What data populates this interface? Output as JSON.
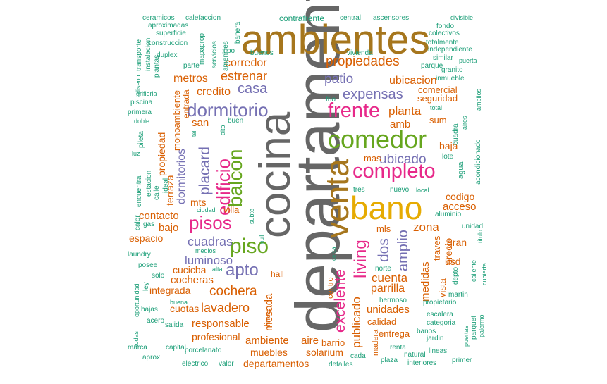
{
  "colors": {
    "t": "#1b9e77",
    "o": "#d95f02",
    "p": "#7570b3",
    "m": "#e7298a",
    "g": "#66a61e",
    "y": "#e6ab02",
    "b": "#a6761d",
    "k": "#666666"
  },
  "words": [
    {
      "text": "departamento",
      "color": "k"
    },
    {
      "text": "ambientes",
      "color": "b"
    },
    {
      "text": "cocina",
      "color": "k"
    },
    {
      "text": "venta",
      "color": "b"
    },
    {
      "text": "bano",
      "color": "y"
    },
    {
      "text": "comedor",
      "color": "g"
    },
    {
      "text": "completo",
      "color": "m"
    },
    {
      "text": "frente",
      "color": "m"
    },
    {
      "text": "piso",
      "color": "g"
    },
    {
      "text": "balcon",
      "color": "g"
    },
    {
      "text": "pisos",
      "color": "m"
    },
    {
      "text": "edificio",
      "color": "m"
    },
    {
      "text": "dormitorio",
      "color": "p"
    },
    {
      "text": "living",
      "color": "m"
    },
    {
      "text": "apto",
      "color": "p"
    },
    {
      "text": "excelente",
      "color": "m"
    },
    {
      "text": "placard",
      "color": "p"
    },
    {
      "text": "propiedades",
      "color": "o"
    },
    {
      "text": "expensas",
      "color": "p"
    },
    {
      "text": "patio",
      "color": "p"
    },
    {
      "text": "casa",
      "color": "p"
    },
    {
      "text": "estrenar",
      "color": "o"
    },
    {
      "text": "ubicado",
      "color": "p"
    },
    {
      "text": "dos",
      "color": "p"
    },
    {
      "text": "amplio",
      "color": "p"
    },
    {
      "text": "cochera",
      "color": "o"
    },
    {
      "text": "lavadero",
      "color": "o"
    },
    {
      "text": "cuadras",
      "color": "p"
    },
    {
      "text": "luminoso",
      "color": "p"
    },
    {
      "text": "dormitorios",
      "color": "p"
    },
    {
      "text": "publicado",
      "color": "o"
    },
    {
      "text": "cuenta",
      "color": "o"
    },
    {
      "text": "parrilla",
      "color": "o"
    },
    {
      "text": "zona",
      "color": "o"
    },
    {
      "text": "planta",
      "color": "o"
    },
    {
      "text": "ubicacion",
      "color": "o"
    },
    {
      "text": "corredor",
      "color": "o"
    },
    {
      "text": "credito",
      "color": "o"
    },
    {
      "text": "metros",
      "color": "o"
    },
    {
      "text": "terraza",
      "color": "o"
    },
    {
      "text": "responsable",
      "color": "o"
    },
    {
      "text": "unidades",
      "color": "o"
    },
    {
      "text": "mesada",
      "color": "o"
    },
    {
      "text": "medidas",
      "color": "o"
    },
    {
      "text": "cocheras",
      "color": "o"
    },
    {
      "text": "ambiente",
      "color": "o"
    },
    {
      "text": "aire",
      "color": "o"
    },
    {
      "text": "muebles",
      "color": "o"
    },
    {
      "text": "solarium",
      "color": "o"
    },
    {
      "text": "departamentos",
      "color": "o"
    },
    {
      "text": "profesional",
      "color": "o"
    },
    {
      "text": "integrada",
      "color": "o"
    },
    {
      "text": "cuotas",
      "color": "o"
    },
    {
      "text": "cucicba",
      "color": "o"
    },
    {
      "text": "contacto",
      "color": "o"
    },
    {
      "text": "bajo",
      "color": "o"
    },
    {
      "text": "espacio",
      "color": "o"
    },
    {
      "text": "propiedad",
      "color": "o"
    },
    {
      "text": "monoambiente",
      "color": "o"
    },
    {
      "text": "entrada",
      "color": "o"
    },
    {
      "text": "san",
      "color": "o"
    },
    {
      "text": "mts",
      "color": "o"
    },
    {
      "text": "villa",
      "color": "o"
    },
    {
      "text": "amb",
      "color": "o"
    },
    {
      "text": "mas",
      "color": "o"
    },
    {
      "text": "mls",
      "color": "o"
    },
    {
      "text": "traves",
      "color": "o"
    },
    {
      "text": "precio",
      "color": "o"
    },
    {
      "text": "vista",
      "color": "o"
    },
    {
      "text": "usd",
      "color": "o"
    },
    {
      "text": "gran",
      "color": "o"
    },
    {
      "text": "acceso",
      "color": "o"
    },
    {
      "text": "codigo",
      "color": "o"
    },
    {
      "text": "baja",
      "color": "o"
    },
    {
      "text": "sum",
      "color": "o"
    },
    {
      "text": "comercial",
      "color": "o"
    },
    {
      "text": "seguridad",
      "color": "o"
    },
    {
      "text": "calidad",
      "color": "o"
    },
    {
      "text": "entrega",
      "color": "o"
    },
    {
      "text": "barrio",
      "color": "o"
    },
    {
      "text": "hall",
      "color": "o"
    },
    {
      "text": "linea",
      "color": "o"
    },
    {
      "text": "centro",
      "color": "o"
    },
    {
      "text": "madera",
      "color": "o"
    },
    {
      "text": "contrafrente",
      "color": "t"
    },
    {
      "text": "ceramicos",
      "color": "t"
    },
    {
      "text": "calefaccion",
      "color": "t"
    },
    {
      "text": "aproximadas",
      "color": "t"
    },
    {
      "text": "superficie",
      "color": "t"
    },
    {
      "text": "construccion",
      "color": "t"
    },
    {
      "text": "duplex",
      "color": "t"
    },
    {
      "text": "parte",
      "color": "t"
    },
    {
      "text": "banera",
      "color": "t"
    },
    {
      "text": "tipo",
      "color": "t"
    },
    {
      "text": "servicios",
      "color": "t"
    },
    {
      "text": "mapaprop",
      "color": "t"
    },
    {
      "text": "amenities",
      "color": "t"
    },
    {
      "text": "transporte",
      "color": "t"
    },
    {
      "text": "instalacion",
      "color": "t"
    },
    {
      "text": "diseno",
      "color": "t"
    },
    {
      "text": "grifieria",
      "color": "t"
    },
    {
      "text": "plantas",
      "color": "t"
    },
    {
      "text": "piscina",
      "color": "t"
    },
    {
      "text": "primera",
      "color": "t"
    },
    {
      "text": "doble",
      "color": "t"
    },
    {
      "text": "pileta",
      "color": "t"
    },
    {
      "text": "luz",
      "color": "t"
    },
    {
      "text": "encuentra",
      "color": "t"
    },
    {
      "text": "estacion",
      "color": "t"
    },
    {
      "text": "calle",
      "color": "t"
    },
    {
      "text": "ideal",
      "color": "t"
    },
    {
      "text": "calor",
      "color": "t"
    },
    {
      "text": "gas",
      "color": "t"
    },
    {
      "text": "laundry",
      "color": "t"
    },
    {
      "text": "posee",
      "color": "t"
    },
    {
      "text": "solo",
      "color": "t"
    },
    {
      "text": "ley",
      "color": "t"
    },
    {
      "text": "oportunidad",
      "color": "t"
    },
    {
      "text": "bajas",
      "color": "t"
    },
    {
      "text": "buena",
      "color": "t"
    },
    {
      "text": "acero",
      "color": "t"
    },
    {
      "text": "salida",
      "color": "t"
    },
    {
      "text": "todas",
      "color": "t"
    },
    {
      "text": "marca",
      "color": "t"
    },
    {
      "text": "capital",
      "color": "t"
    },
    {
      "text": "aprox",
      "color": "t"
    },
    {
      "text": "porcelanato",
      "color": "t"
    },
    {
      "text": "electrico",
      "color": "t"
    },
    {
      "text": "valor",
      "color": "t"
    },
    {
      "text": "detalles",
      "color": "t"
    },
    {
      "text": "cada",
      "color": "t"
    },
    {
      "text": "plaza",
      "color": "t"
    },
    {
      "text": "interiores",
      "color": "t"
    },
    {
      "text": "natural",
      "color": "t"
    },
    {
      "text": "renta",
      "color": "t"
    },
    {
      "text": "lineas",
      "color": "t"
    },
    {
      "text": "primer",
      "color": "t"
    },
    {
      "text": "jardin",
      "color": "t"
    },
    {
      "text": "banos",
      "color": "t"
    },
    {
      "text": "puertas",
      "color": "t"
    },
    {
      "text": "parquet",
      "color": "t"
    },
    {
      "text": "palermo",
      "color": "t"
    },
    {
      "text": "categoria",
      "color": "t"
    },
    {
      "text": "escalera",
      "color": "t"
    },
    {
      "text": "propietario",
      "color": "t"
    },
    {
      "text": "martin",
      "color": "t"
    },
    {
      "text": "hermoso",
      "color": "t"
    },
    {
      "text": "depto",
      "color": "t"
    },
    {
      "text": "cubierta",
      "color": "t"
    },
    {
      "text": "caliente",
      "color": "t"
    },
    {
      "text": "titulo",
      "color": "t"
    },
    {
      "text": "unidad",
      "color": "t"
    },
    {
      "text": "aluminio",
      "color": "t"
    },
    {
      "text": "agua",
      "color": "t"
    },
    {
      "text": "acondicionado",
      "color": "t"
    },
    {
      "text": "lote",
      "color": "t"
    },
    {
      "text": "cuadra",
      "color": "t"
    },
    {
      "text": "aires",
      "color": "t"
    },
    {
      "text": "amplios",
      "color": "t"
    },
    {
      "text": "total",
      "color": "t"
    },
    {
      "text": "inmueble",
      "color": "t"
    },
    {
      "text": "granito",
      "color": "t"
    },
    {
      "text": "puerta",
      "color": "t"
    },
    {
      "text": "parque",
      "color": "t"
    },
    {
      "text": "similar",
      "color": "t"
    },
    {
      "text": "independiente",
      "color": "t"
    },
    {
      "text": "totalmente",
      "color": "t"
    },
    {
      "text": "fondo",
      "color": "t"
    },
    {
      "text": "colectivos",
      "color": "t"
    },
    {
      "text": "divisible",
      "color": "t"
    },
    {
      "text": "ascensores",
      "color": "t"
    },
    {
      "text": "central",
      "color": "t"
    },
    {
      "text": "vivienda",
      "color": "t"
    },
    {
      "text": "buenos",
      "color": "t"
    },
    {
      "text": "frio",
      "color": "t"
    },
    {
      "text": "buen",
      "color": "t"
    },
    {
      "text": "alto",
      "color": "t"
    },
    {
      "text": "tel",
      "color": "t"
    },
    {
      "text": "ciudad",
      "color": "t"
    },
    {
      "text": "subte",
      "color": "t"
    },
    {
      "text": "null",
      "color": "t"
    },
    {
      "text": "medios",
      "color": "t"
    },
    {
      "text": "alta",
      "color": "t"
    },
    {
      "text": "cerca",
      "color": "t"
    },
    {
      "text": "tres",
      "color": "t"
    },
    {
      "text": "nuevo",
      "color": "t"
    },
    {
      "text": "local",
      "color": "t"
    },
    {
      "text": "norte",
      "color": "t"
    }
  ]
}
